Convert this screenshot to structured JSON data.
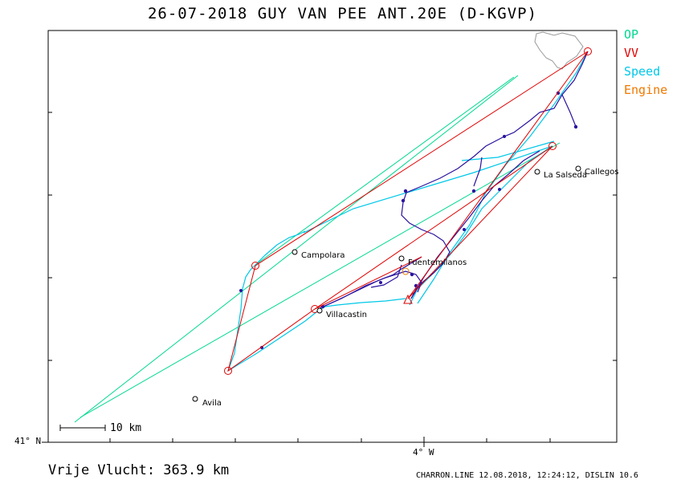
{
  "title": "26-07-2018   GUY VAN PEE   ANT.20E (D-KGVP)",
  "legend": [
    {
      "label": "OP",
      "color": "#00d890"
    },
    {
      "label": "VV",
      "color": "#e00000"
    },
    {
      "label": "Speed",
      "color": "#00c8e8"
    },
    {
      "label": "Engine",
      "color": "#f07800"
    }
  ],
  "axes": {
    "lat_label": "41° N",
    "lon_label": "4° W"
  },
  "scale_bar": {
    "label": "10 km",
    "km": 10
  },
  "places": [
    {
      "name": "Campolara"
    },
    {
      "name": "Fuentemilanos"
    },
    {
      "name": "Villacastin"
    },
    {
      "name": "Avila"
    },
    {
      "name": "La Salseda"
    },
    {
      "name": "Callegos"
    }
  ],
  "distance_text": "Vrije Vlucht:  363.9 km",
  "footer_text": "CHARRON.LINE 12.08.2018, 12:24:12, DISLIN 10.6",
  "colors": {
    "op": "#00d890",
    "vv": "#e00000",
    "speed": "#00c8e8",
    "engine": "#f07800",
    "track": "#2a12a0",
    "border": "#888888"
  }
}
